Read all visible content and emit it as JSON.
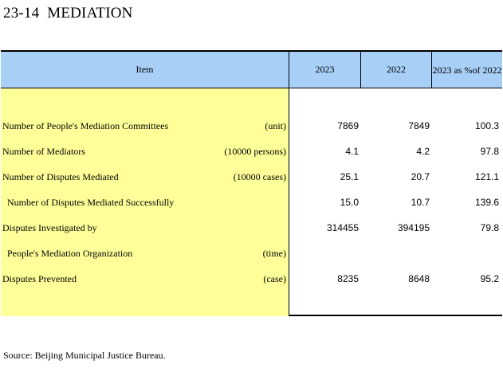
{
  "title": "23-14  MEDIATION",
  "header": {
    "item": "Item",
    "col_2023": "2023",
    "col_2022": "2022",
    "col_pct_line1": "2023 as %",
    "col_pct_line2": "of 2022"
  },
  "rows": [
    {
      "label": "Number of People's Mediation Committees",
      "unit": "(unit)",
      "v2023": "7869",
      "v2022": "7849",
      "pct": "100.3"
    },
    {
      "label": "Number of Mediators",
      "unit": "(10000 persons)",
      "v2023": "4.1",
      "v2022": "4.2",
      "pct": "97.8"
    },
    {
      "label": "Number of Disputes Mediated",
      "unit": "(10000 cases)",
      "v2023": "25.1",
      "v2022": "20.7",
      "pct": "121.1"
    },
    {
      "label": "  Number of Disputes Mediated Successfully",
      "unit": "",
      "v2023": "15.0",
      "v2022": "10.7",
      "pct": "139.6"
    },
    {
      "label": "Disputes Investigated by",
      "unit": "",
      "v2023": "314455",
      "v2022": "394195",
      "pct": "79.8"
    },
    {
      "label": "  People's Mediation Organization",
      "unit": "(time)",
      "v2023": "",
      "v2022": "",
      "pct": ""
    },
    {
      "label": "Disputes Prevented",
      "unit": "(case)",
      "v2023": "8235",
      "v2022": "8648",
      "pct": "95.2"
    }
  ],
  "source": "Source: Beijing Municipal Justice Bureau."
}
